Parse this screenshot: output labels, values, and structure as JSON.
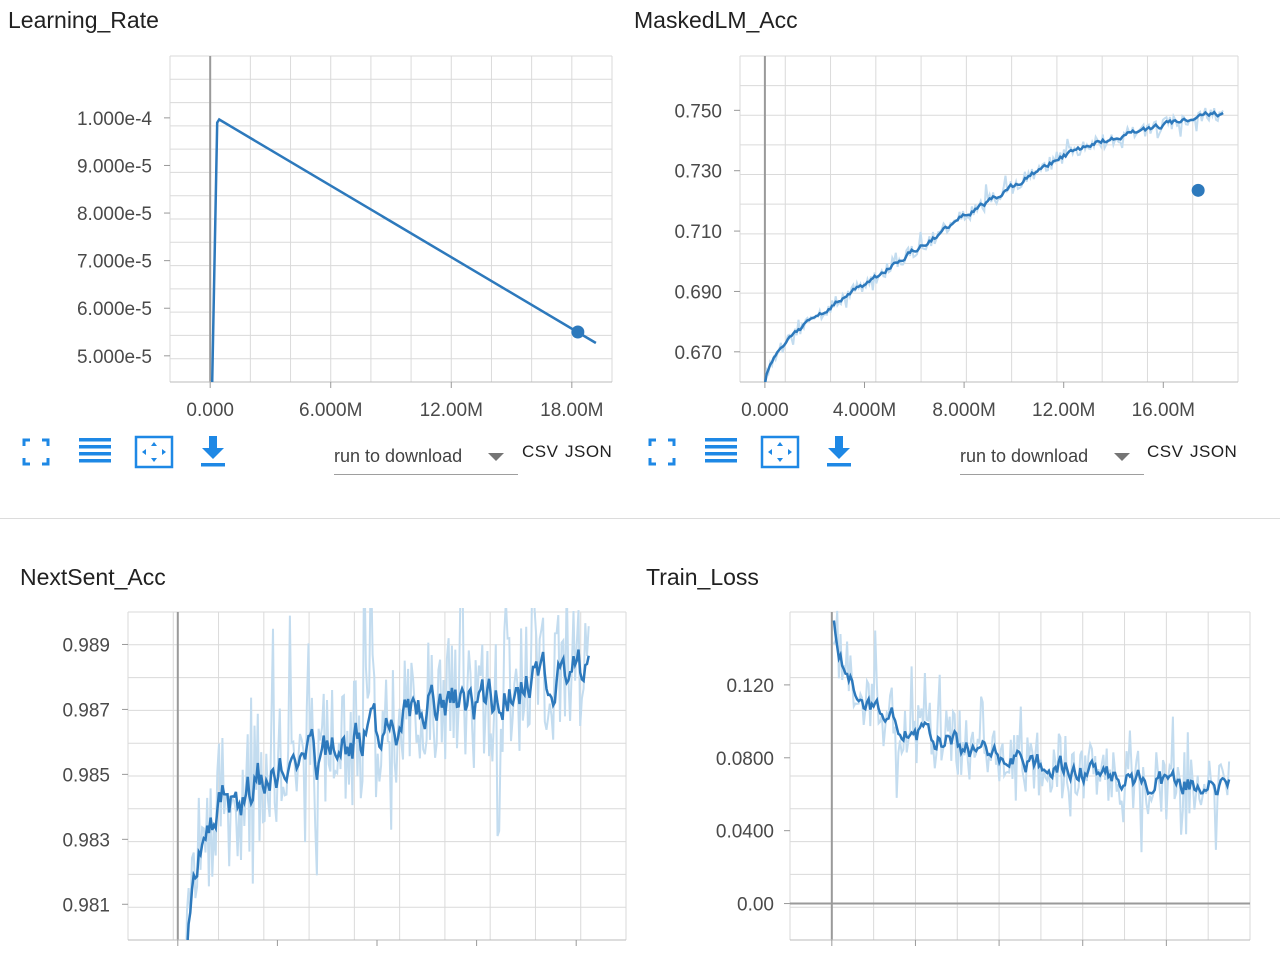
{
  "cards": [
    {
      "title": "Learning_Rate",
      "toolbar": {
        "icons": [
          "fullscreen-icon",
          "list-icon",
          "fit-domain-icon",
          "download-icon"
        ],
        "select_label": "run to download",
        "csv": "CSV",
        "json": "JSON"
      }
    },
    {
      "title": "MaskedLM_Acc",
      "toolbar": {
        "icons": [
          "fullscreen-icon",
          "list-icon",
          "fit-domain-icon",
          "download-icon"
        ],
        "select_label": "run to download",
        "csv": "CSV",
        "json": "JSON"
      }
    },
    {
      "title": "NextSent_Acc"
    },
    {
      "title": "Train_Loss"
    }
  ],
  "colors": {
    "line": "#2d79bc",
    "raw": "#c3dcef",
    "grid": "#dadada",
    "axis": "#9a9a9a",
    "icon": "#1e88e5"
  },
  "chart_data": [
    {
      "type": "line",
      "title": "Learning_Rate",
      "xlim": [
        -2000000,
        20000000
      ],
      "ylim": [
        4.45e-05,
        0.000113
      ],
      "yticks": [
        5e-05,
        6e-05,
        7e-05,
        8e-05,
        9e-05,
        0.0001
      ],
      "ytick_labels": [
        "5.000e-5",
        "6.000e-5",
        "7.000e-5",
        "8.000e-5",
        "9.000e-5",
        "1.000e-4"
      ],
      "xticks": [
        0,
        6000000,
        12000000,
        18000000
      ],
      "xtick_labels": [
        "0.000",
        "6.000M",
        "12.00M",
        "18.00M"
      ],
      "series": [
        {
          "x": [
            100000,
            350000,
            450000,
            19200000
          ],
          "y": [
            4.45e-05,
            9.9e-05,
            9.965e-05,
            5.27e-05
          ]
        }
      ],
      "marker": {
        "x": 18300000,
        "y": 5.5e-05
      }
    },
    {
      "type": "line",
      "title": "MaskedLM_Acc",
      "xlim": [
        -1000000,
        19000000
      ],
      "ylim": [
        0.66,
        0.768
      ],
      "yticks": [
        0.67,
        0.69,
        0.71,
        0.73,
        0.75
      ],
      "ytick_labels": [
        "0.670",
        "0.690",
        "0.710",
        "0.730",
        "0.750"
      ],
      "xticks": [
        0,
        4000000,
        8000000,
        12000000,
        16000000
      ],
      "xtick_labels": [
        "0.000",
        "4.000M",
        "8.000M",
        "12.00M",
        "16.00M"
      ],
      "series": [
        {
          "x": [
            0,
            100000,
            500000,
            1000000,
            2000000,
            3000000,
            4000000,
            5000000,
            6000000,
            7000000,
            8000000,
            9000000,
            10000000,
            11000000,
            12000000,
            13000000,
            14000000,
            15000000,
            16000000,
            17000000,
            18000000,
            18400000
          ],
          "y": [
            0.66,
            0.664,
            0.671,
            0.675,
            0.681,
            0.687,
            0.692,
            0.698,
            0.704,
            0.709,
            0.715,
            0.72,
            0.725,
            0.73,
            0.735,
            0.738,
            0.741,
            0.743,
            0.745,
            0.747,
            0.749,
            0.749
          ]
        }
      ],
      "marker": {
        "x": 17400000,
        "y": 0.7235
      }
    },
    {
      "type": "line",
      "title": "NextSent_Acc",
      "xlim": [
        -2000000,
        18000000
      ],
      "ylim": [
        0.9799,
        0.99
      ],
      "yticks": [
        0.981,
        0.983,
        0.985,
        0.987,
        0.989
      ],
      "ytick_labels": [
        "0.981",
        "0.983",
        "0.985",
        "0.987",
        "0.989"
      ],
      "xticks": [
        0,
        4000000,
        8000000,
        12000000,
        16000000
      ],
      "xtick_labels": [
        "",
        "",
        "",
        "",
        ""
      ],
      "series": [
        {
          "x": [
            300000,
            600000,
            1000000,
            1500000,
            2000000,
            3000000,
            4000000,
            5000000,
            6000000,
            7000000,
            8000000,
            9000000,
            10000000,
            11000000,
            12000000,
            13000000,
            14000000,
            15000000,
            16000000,
            16500000
          ],
          "y": [
            0.9801,
            0.9815,
            0.9825,
            0.9838,
            0.9842,
            0.9848,
            0.9851,
            0.9853,
            0.9856,
            0.9859,
            0.9863,
            0.9866,
            0.9869,
            0.9872,
            0.9871,
            0.9875,
            0.9877,
            0.9879,
            0.9881,
            0.9881
          ]
        }
      ]
    },
    {
      "type": "line",
      "title": "Train_Loss",
      "xlim": [
        -2000000,
        20000000
      ],
      "ylim": [
        -0.02,
        0.16
      ],
      "yticks": [
        0,
        0.04,
        0.08,
        0.12
      ],
      "ytick_labels": [
        "0.00",
        "0.0400",
        "0.0800",
        "0.120"
      ],
      "xticks": [
        0,
        4000000,
        8000000,
        12000000,
        16000000
      ],
      "xtick_labels": [
        "",
        "",
        "",
        "",
        ""
      ],
      "series": [
        {
          "x": [
            100000,
            300000,
            700000,
            1200000,
            2000000,
            3000000,
            4000000,
            5000000,
            6000000,
            7000000,
            8000000,
            9000000,
            10000000,
            11000000,
            12000000,
            13000000,
            14000000,
            15000000,
            16000000,
            17000000,
            18000000,
            19000000
          ],
          "y": [
            0.16,
            0.14,
            0.125,
            0.115,
            0.105,
            0.1,
            0.094,
            0.09,
            0.087,
            0.084,
            0.081,
            0.079,
            0.077,
            0.075,
            0.073,
            0.071,
            0.069,
            0.067,
            0.066,
            0.065,
            0.064,
            0.064
          ]
        }
      ]
    }
  ]
}
